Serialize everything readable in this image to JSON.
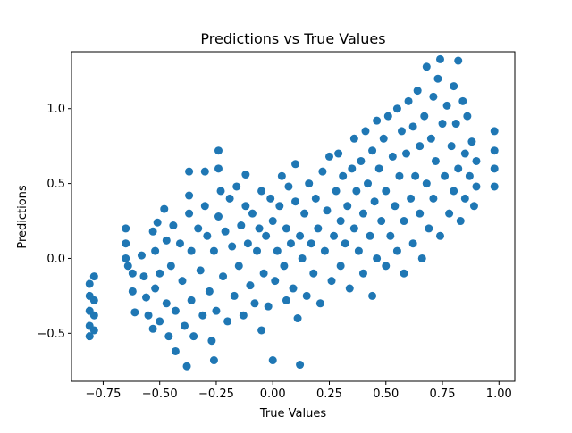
{
  "chart_data": {
    "type": "scatter",
    "title": "Predictions vs True Values",
    "xlabel": "True Values",
    "ylabel": "Predictions",
    "xlim": [
      -0.89,
      1.07
    ],
    "ylim": [
      -0.82,
      1.38
    ],
    "xticks": [
      -0.75,
      -0.5,
      -0.25,
      0.0,
      0.25,
      0.5,
      0.75,
      1.0
    ],
    "xtick_labels": [
      "−0.75",
      "−0.50",
      "−0.25",
      "0.00",
      "0.25",
      "0.50",
      "0.75",
      "1.00"
    ],
    "yticks": [
      -0.5,
      0.0,
      0.5,
      1.0
    ],
    "ytick_labels": [
      "−0.5",
      "0.0",
      "0.5",
      "1.0"
    ],
    "grid": false,
    "marker_color": "#1f77b4",
    "series": [
      {
        "points": [
          [
            -0.81,
            -0.52
          ],
          [
            -0.81,
            -0.45
          ],
          [
            -0.81,
            -0.35
          ],
          [
            -0.81,
            -0.25
          ],
          [
            -0.81,
            -0.17
          ],
          [
            -0.79,
            -0.48
          ],
          [
            -0.79,
            -0.38
          ],
          [
            -0.79,
            -0.28
          ],
          [
            -0.79,
            -0.12
          ],
          [
            -0.65,
            0.2
          ],
          [
            -0.65,
            0.1
          ],
          [
            -0.65,
            0.0
          ],
          [
            -0.64,
            -0.05
          ],
          [
            -0.62,
            -0.1
          ],
          [
            -0.62,
            -0.22
          ],
          [
            -0.61,
            -0.36
          ],
          [
            -0.58,
            0.02
          ],
          [
            -0.57,
            -0.12
          ],
          [
            -0.56,
            -0.26
          ],
          [
            -0.55,
            -0.38
          ],
          [
            -0.53,
            -0.47
          ],
          [
            -0.53,
            0.18
          ],
          [
            -0.52,
            0.05
          ],
          [
            -0.52,
            -0.2
          ],
          [
            -0.51,
            0.24
          ],
          [
            -0.5,
            -0.42
          ],
          [
            -0.5,
            -0.1
          ],
          [
            -0.48,
            0.33
          ],
          [
            -0.47,
            0.12
          ],
          [
            -0.47,
            -0.3
          ],
          [
            -0.46,
            -0.52
          ],
          [
            -0.45,
            -0.05
          ],
          [
            -0.44,
            0.22
          ],
          [
            -0.43,
            -0.35
          ],
          [
            -0.43,
            -0.62
          ],
          [
            -0.41,
            0.1
          ],
          [
            -0.4,
            -0.15
          ],
          [
            -0.39,
            -0.45
          ],
          [
            -0.38,
            -0.72
          ],
          [
            -0.37,
            0.3
          ],
          [
            -0.36,
            0.05
          ],
          [
            -0.36,
            -0.28
          ],
          [
            -0.37,
            0.58
          ],
          [
            -0.37,
            0.42
          ],
          [
            -0.35,
            -0.52
          ],
          [
            -0.33,
            0.2
          ],
          [
            -0.32,
            -0.08
          ],
          [
            -0.31,
            -0.38
          ],
          [
            -0.3,
            0.58
          ],
          [
            -0.3,
            0.35
          ],
          [
            -0.29,
            0.15
          ],
          [
            -0.28,
            -0.22
          ],
          [
            -0.27,
            -0.55
          ],
          [
            -0.26,
            -0.68
          ],
          [
            -0.26,
            0.05
          ],
          [
            -0.25,
            -0.35
          ],
          [
            -0.24,
            0.28
          ],
          [
            -0.24,
            0.72
          ],
          [
            -0.24,
            0.6
          ],
          [
            -0.23,
            0.45
          ],
          [
            -0.22,
            -0.12
          ],
          [
            -0.21,
            0.18
          ],
          [
            -0.2,
            -0.42
          ],
          [
            -0.19,
            0.4
          ],
          [
            -0.18,
            0.08
          ],
          [
            -0.17,
            -0.25
          ],
          [
            -0.16,
            0.48
          ],
          [
            -0.15,
            -0.05
          ],
          [
            -0.14,
            0.22
          ],
          [
            -0.13,
            -0.38
          ],
          [
            -0.12,
            0.56
          ],
          [
            -0.12,
            0.35
          ],
          [
            -0.11,
            0.1
          ],
          [
            -0.1,
            -0.18
          ],
          [
            -0.09,
            0.3
          ],
          [
            -0.08,
            -0.3
          ],
          [
            -0.07,
            0.05
          ],
          [
            -0.06,
            0.2
          ],
          [
            -0.05,
            -0.48
          ],
          [
            -0.05,
            0.45
          ],
          [
            -0.04,
            -0.1
          ],
          [
            -0.03,
            0.15
          ],
          [
            -0.02,
            -0.32
          ],
          [
            -0.01,
            0.4
          ],
          [
            0.0,
            -0.68
          ],
          [
            0.0,
            0.25
          ],
          [
            0.01,
            -0.15
          ],
          [
            0.02,
            0.05
          ],
          [
            0.03,
            0.35
          ],
          [
            0.04,
            0.55
          ],
          [
            0.05,
            -0.05
          ],
          [
            0.06,
            0.2
          ],
          [
            0.06,
            -0.28
          ],
          [
            0.07,
            0.48
          ],
          [
            0.08,
            0.1
          ],
          [
            0.09,
            -0.2
          ],
          [
            0.1,
            0.38
          ],
          [
            0.1,
            0.63
          ],
          [
            0.11,
            -0.4
          ],
          [
            0.12,
            0.15
          ],
          [
            0.12,
            -0.71
          ],
          [
            0.13,
            0.0
          ],
          [
            0.14,
            0.3
          ],
          [
            0.15,
            -0.25
          ],
          [
            0.16,
            0.5
          ],
          [
            0.17,
            0.1
          ],
          [
            0.18,
            -0.1
          ],
          [
            0.19,
            0.4
          ],
          [
            0.2,
            0.2
          ],
          [
            0.21,
            -0.3
          ],
          [
            0.22,
            0.58
          ],
          [
            0.23,
            0.05
          ],
          [
            0.24,
            0.32
          ],
          [
            0.25,
            0.68
          ],
          [
            0.26,
            -0.15
          ],
          [
            0.27,
            0.15
          ],
          [
            0.28,
            0.45
          ],
          [
            0.29,
            0.7
          ],
          [
            0.3,
            0.25
          ],
          [
            0.3,
            -0.05
          ],
          [
            0.31,
            0.55
          ],
          [
            0.32,
            0.1
          ],
          [
            0.33,
            0.35
          ],
          [
            0.34,
            -0.2
          ],
          [
            0.35,
            0.6
          ],
          [
            0.36,
            0.8
          ],
          [
            0.36,
            0.2
          ],
          [
            0.37,
            0.45
          ],
          [
            0.38,
            0.05
          ],
          [
            0.39,
            0.65
          ],
          [
            0.4,
            0.3
          ],
          [
            0.4,
            -0.1
          ],
          [
            0.41,
            0.85
          ],
          [
            0.42,
            0.5
          ],
          [
            0.43,
            0.15
          ],
          [
            0.44,
            0.72
          ],
          [
            0.44,
            -0.25
          ],
          [
            0.45,
            0.38
          ],
          [
            0.46,
            0.92
          ],
          [
            0.46,
            0.0
          ],
          [
            0.47,
            0.6
          ],
          [
            0.48,
            0.25
          ],
          [
            0.49,
            0.8
          ],
          [
            0.5,
            0.45
          ],
          [
            0.5,
            -0.05
          ],
          [
            0.51,
            0.95
          ],
          [
            0.52,
            0.15
          ],
          [
            0.53,
            0.68
          ],
          [
            0.54,
            0.35
          ],
          [
            0.55,
            1.0
          ],
          [
            0.55,
            0.05
          ],
          [
            0.56,
            0.55
          ],
          [
            0.57,
            0.85
          ],
          [
            0.58,
            0.25
          ],
          [
            0.58,
            -0.1
          ],
          [
            0.59,
            0.7
          ],
          [
            0.6,
            1.05
          ],
          [
            0.61,
            0.4
          ],
          [
            0.62,
            0.1
          ],
          [
            0.62,
            0.88
          ],
          [
            0.63,
            0.55
          ],
          [
            0.64,
            1.12
          ],
          [
            0.65,
            0.3
          ],
          [
            0.65,
            0.75
          ],
          [
            0.66,
            0.0
          ],
          [
            0.67,
            0.95
          ],
          [
            0.68,
            0.5
          ],
          [
            0.68,
            1.28
          ],
          [
            0.69,
            0.2
          ],
          [
            0.7,
            0.8
          ],
          [
            0.71,
            1.08
          ],
          [
            0.71,
            0.4
          ],
          [
            0.72,
            0.65
          ],
          [
            0.73,
            1.2
          ],
          [
            0.74,
            0.15
          ],
          [
            0.74,
            1.33
          ],
          [
            0.75,
            0.9
          ],
          [
            0.76,
            0.55
          ],
          [
            0.77,
            1.02
          ],
          [
            0.78,
            0.3
          ],
          [
            0.79,
            0.75
          ],
          [
            0.8,
            1.15
          ],
          [
            0.8,
            0.45
          ],
          [
            0.81,
            0.9
          ],
          [
            0.82,
            1.32
          ],
          [
            0.82,
            0.6
          ],
          [
            0.83,
            0.25
          ],
          [
            0.84,
            1.05
          ],
          [
            0.85,
            0.7
          ],
          [
            0.85,
            0.4
          ],
          [
            0.86,
            0.95
          ],
          [
            0.87,
            0.55
          ],
          [
            0.88,
            0.78
          ],
          [
            0.89,
            0.35
          ],
          [
            0.9,
            0.65
          ],
          [
            0.9,
            0.48
          ],
          [
            0.98,
            0.85
          ],
          [
            0.98,
            0.72
          ],
          [
            0.98,
            0.6
          ],
          [
            0.98,
            0.48
          ]
        ]
      }
    ]
  }
}
